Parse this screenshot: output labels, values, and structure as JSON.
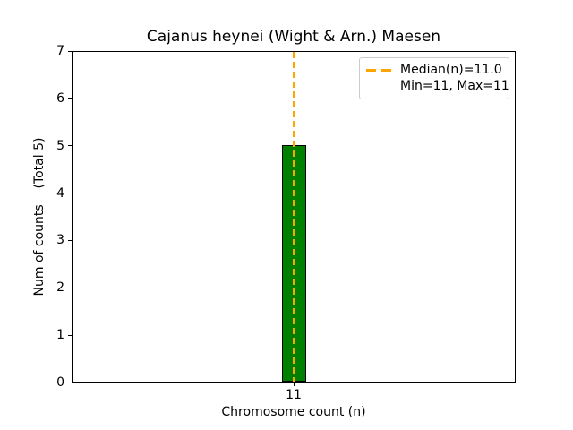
{
  "chart_data": {
    "type": "bar",
    "title": "Cajanus heynei (Wight & Arn.) Maesen",
    "xlabel": "Chromosome count (n)",
    "ylabel": "Num of counts    (Total 5)",
    "categories": [
      "11"
    ],
    "values": [
      5
    ],
    "total_counts": 5,
    "ylim": [
      0,
      7
    ],
    "yticks": [
      0,
      1,
      2,
      3,
      4,
      5,
      6,
      7
    ],
    "grid": false,
    "bar_color": "#008000",
    "bar_edge_color": "#000000",
    "median_line": {
      "x": 11,
      "value": 11.0,
      "color": "#FFA500",
      "style": "dashed"
    },
    "stats": {
      "median": 11.0,
      "min": 11,
      "max": 11
    },
    "legend": {
      "position": "upper right",
      "entries": [
        {
          "handle": "orange-dashed-line",
          "label": "Median(n)=11.0"
        },
        {
          "handle": "none",
          "label": "Min=11, Max=11"
        }
      ]
    }
  }
}
